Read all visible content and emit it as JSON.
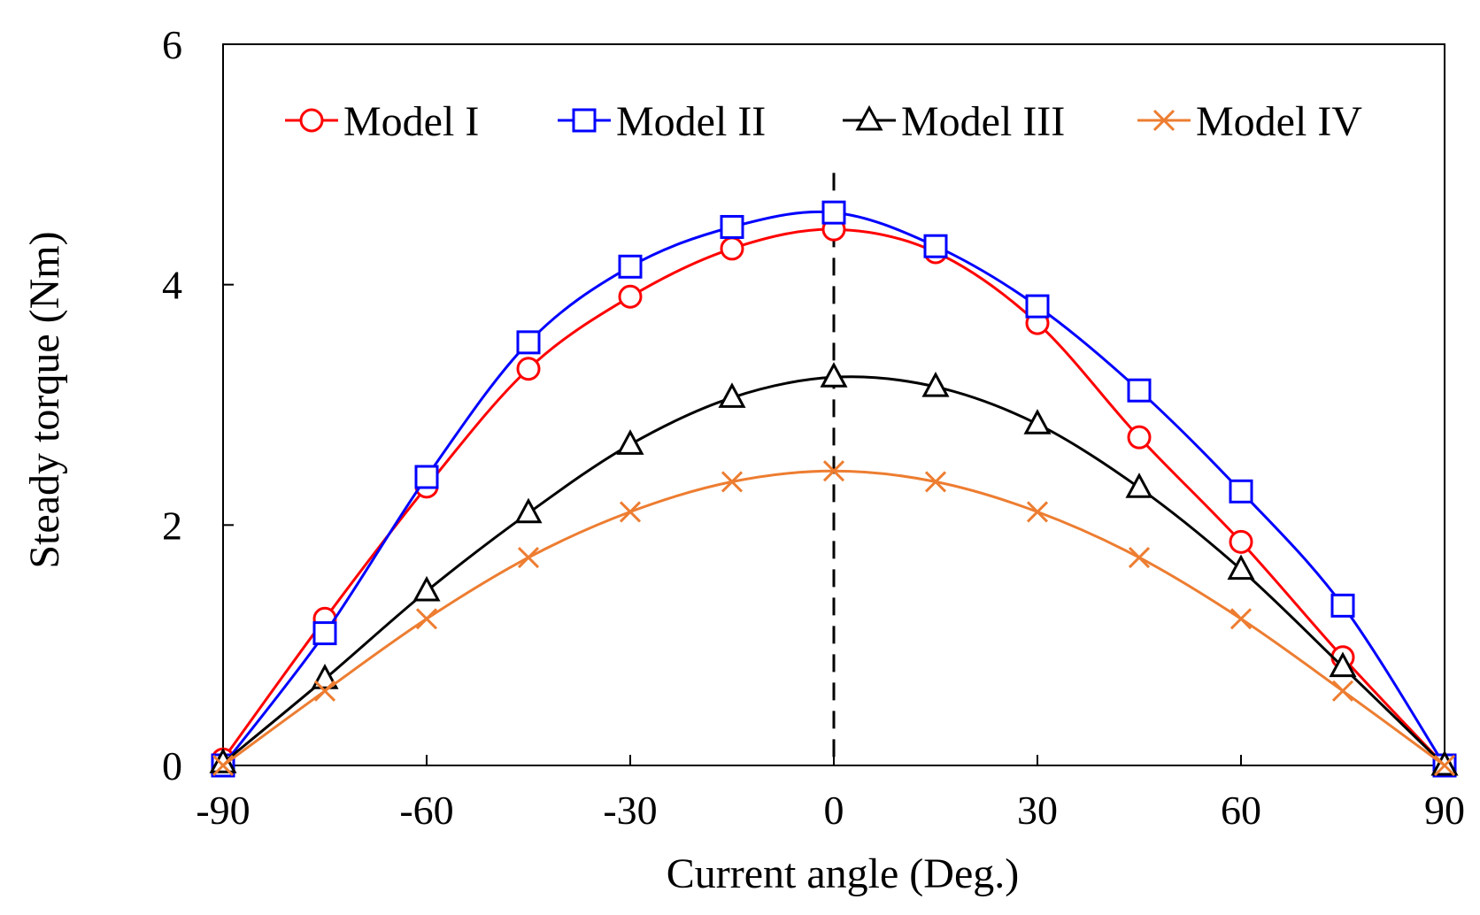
{
  "chart_data": {
    "type": "line",
    "title": "",
    "xlabel": "Current angle (Deg.)",
    "ylabel": "Steady torque  (Nm)",
    "xlim": [
      -90,
      90
    ],
    "ylim": [
      0,
      6
    ],
    "xticks": [
      -90,
      -60,
      -30,
      0,
      30,
      60,
      90
    ],
    "yticks": [
      0,
      2,
      4,
      6
    ],
    "x": [
      -90,
      -75,
      -60,
      -45,
      -30,
      -15,
      0,
      15,
      30,
      45,
      60,
      75,
      90
    ],
    "reference_line": {
      "x": 0,
      "style": "dashed"
    },
    "legend_position": "top",
    "series": [
      {
        "name": "Model I",
        "color": "#ff0000",
        "marker": "circle",
        "values": [
          0.05,
          1.22,
          2.32,
          3.3,
          3.9,
          4.3,
          4.46,
          4.27,
          3.68,
          2.73,
          1.86,
          0.9,
          0.0
        ]
      },
      {
        "name": "Model II",
        "color": "#0000ff",
        "marker": "square",
        "values": [
          0.0,
          1.1,
          2.4,
          3.52,
          4.15,
          4.48,
          4.6,
          4.32,
          3.82,
          3.12,
          2.28,
          1.33,
          0.0
        ]
      },
      {
        "name": "Model III",
        "color": "#000000",
        "marker": "triangle",
        "values": [
          0.02,
          0.72,
          1.45,
          2.1,
          2.67,
          3.06,
          3.23,
          3.15,
          2.84,
          2.31,
          1.63,
          0.82,
          0.0
        ]
      },
      {
        "name": "Model IV",
        "color": "#ed7d31",
        "marker": "cross",
        "values": [
          0.0,
          0.62,
          1.22,
          1.73,
          2.11,
          2.36,
          2.45,
          2.36,
          2.11,
          1.73,
          1.22,
          0.62,
          0.0
        ]
      }
    ]
  }
}
